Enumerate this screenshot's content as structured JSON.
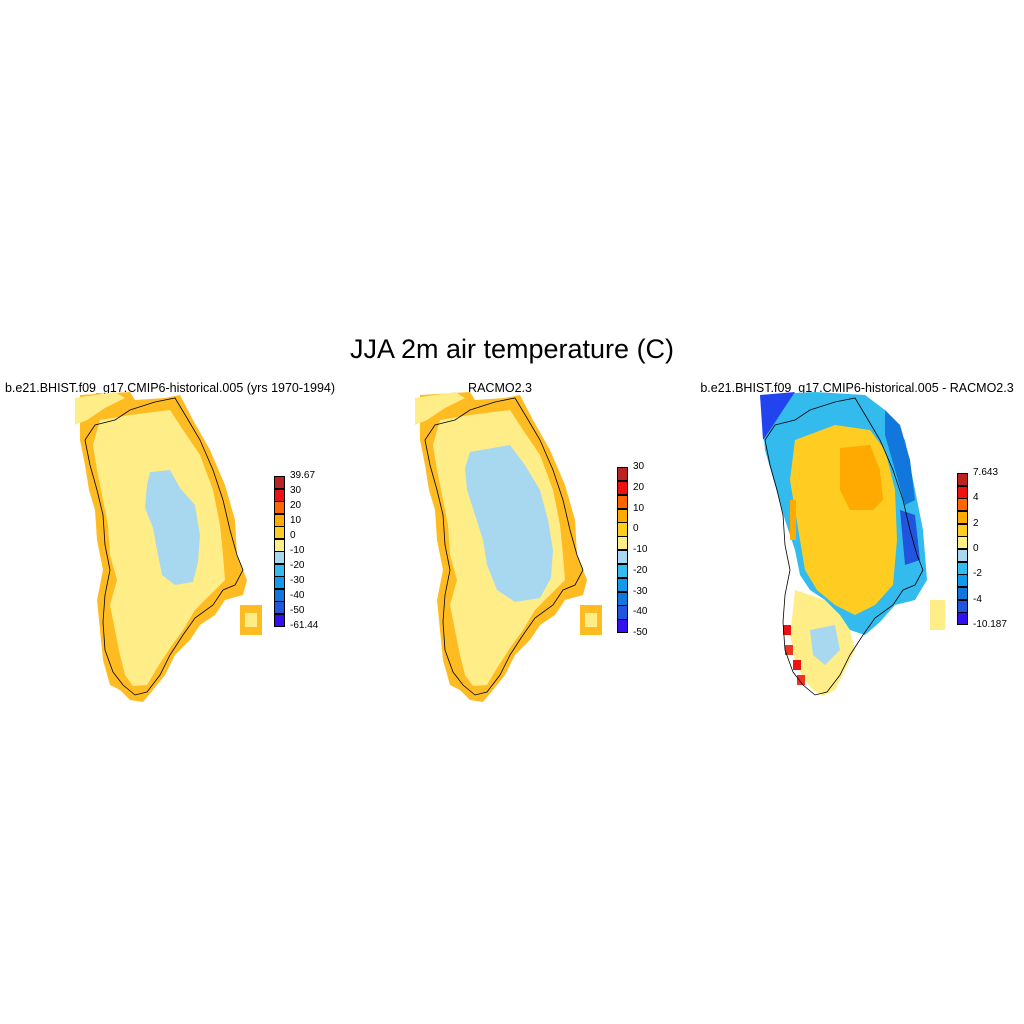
{
  "title": "JJA 2m air temperature (C)",
  "panels": [
    {
      "title": "b.e21.BHIST.f09_g17.CMIP6-historical.005 (yrs 1970-1994)",
      "colorbar": {
        "colors": [
          "#3311ee",
          "#2255dd",
          "#1177dd",
          "#1199ee",
          "#33bbee",
          "#a8d8f0",
          "#ffee88",
          "#ffcc22",
          "#ffaa00",
          "#ff6600",
          "#ee1111",
          "#bb2222"
        ],
        "labels": [
          "-61.44",
          "-50",
          "-40",
          "-30",
          "-20",
          "-10",
          "0",
          "10",
          "20",
          "30",
          "39.67"
        ]
      }
    },
    {
      "title": "RACMO2.3",
      "colorbar": {
        "colors": [
          "#3311ee",
          "#2255dd",
          "#1177dd",
          "#1199ee",
          "#33bbee",
          "#a8d8f0",
          "#ffee88",
          "#ffcc22",
          "#ffaa00",
          "#ff6600",
          "#ee1111",
          "#bb2222"
        ],
        "labels": [
          "-50",
          "-40",
          "-30",
          "-20",
          "-10",
          "0",
          "10",
          "20",
          "30"
        ]
      }
    },
    {
      "title": "b.e21.BHIST.f09_g17.CMIP6-historical.005 - RACMO2.3",
      "colorbar": {
        "colors": [
          "#3311ee",
          "#2255dd",
          "#1177dd",
          "#1199ee",
          "#33bbee",
          "#a8d8f0",
          "#ffee88",
          "#ffcc22",
          "#ffaa00",
          "#ff6600",
          "#ee1111",
          "#bb2222"
        ],
        "labels": [
          "-10.187",
          "-4",
          "-2",
          "0",
          "2",
          "4",
          "7.643"
        ]
      }
    }
  ]
}
